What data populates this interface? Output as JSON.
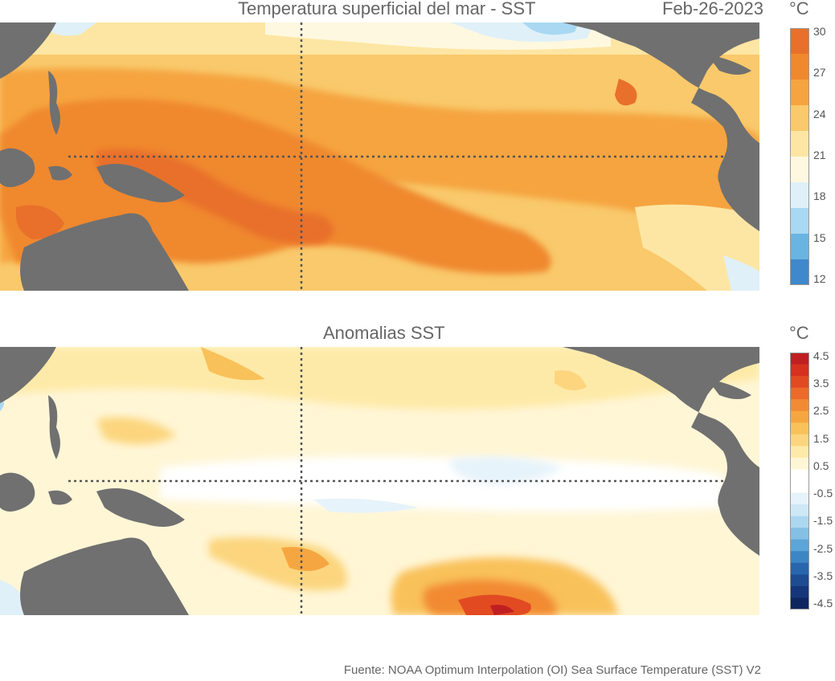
{
  "sst_panel": {
    "title": "Temperatura superficial del mar - SST",
    "date": "Feb-26-2023",
    "unit": "°C",
    "colorbar": {
      "tick_labels": [
        "30",
        "27",
        "24",
        "21",
        "18",
        "15",
        "12"
      ],
      "colors": [
        "#e8702a",
        "#f0882d",
        "#f5a43f",
        "#f9c96b",
        "#fde6a4",
        "#fff8e0",
        "#dff0f8",
        "#a9d8f2",
        "#6ab4e2",
        "#3f88cc"
      ]
    }
  },
  "anomaly_panel": {
    "title": "Anomalias SST",
    "unit": "°C",
    "colorbar": {
      "tick_labels": [
        "4.5",
        "3.5",
        "2.5",
        "1.5",
        "0.5",
        "-0.5",
        "-1.5",
        "-2.5",
        "-3.5",
        "-4.5"
      ],
      "colors": [
        "#c01f22",
        "#d6301f",
        "#e24a22",
        "#ec6a2a",
        "#f28a33",
        "#f6a640",
        "#f9c15a",
        "#fcd57e",
        "#feeaa8",
        "#fff6d6",
        "#ffffff",
        "#ffffff",
        "#e6f3fa",
        "#cfe8f6",
        "#acd7f0",
        "#84c0e6",
        "#5ca5d8",
        "#3c86c4",
        "#2766ad",
        "#1d4c92",
        "#15367a",
        "#0f2560"
      ]
    }
  },
  "footer": {
    "source": "Fuente: NOAA Optimum Interpolation (OI) Sea Surface Temperature (SST) V2"
  }
}
